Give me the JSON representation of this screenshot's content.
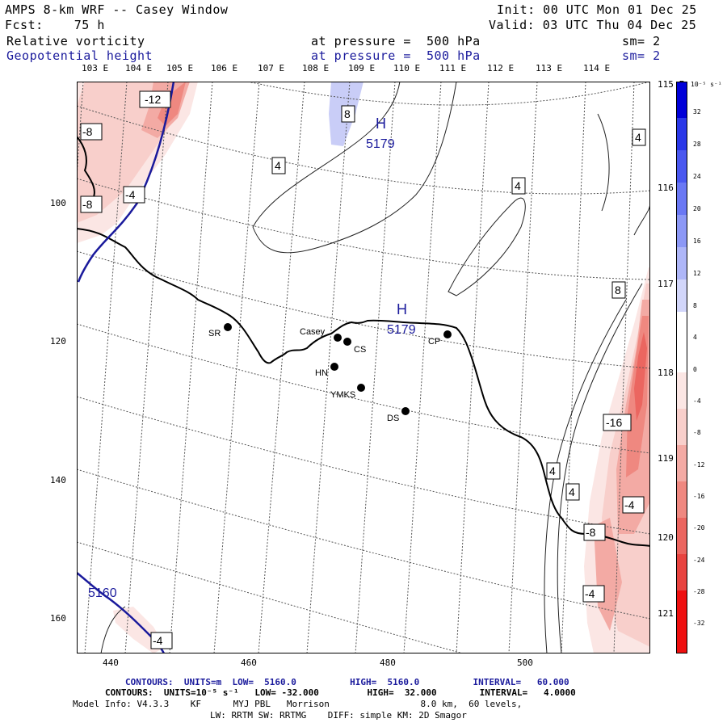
{
  "header": {
    "title": "AMPS 8-km WRF -- Casey Window",
    "forecast": "Fcst:    75 h",
    "init": "Init: 00 UTC Mon 01 Dec 25",
    "valid": "Valid: 03 UTC Thu 04 Dec 25",
    "field1": {
      "name": "Relative vorticity",
      "pressure": "at pressure =  500 hPa",
      "sm": "sm= 2"
    },
    "field2": {
      "name": "Geopotential height",
      "pressure": "at pressure =  500 hPa",
      "sm": "sm= 2"
    }
  },
  "axes": {
    "top_lon_labels": [
      "103 E",
      "104 E",
      "105 E",
      "106 E",
      "107 E",
      "108 E",
      "109 E",
      "110 E",
      "111 E",
      "112 E",
      "113 E",
      "114 E"
    ],
    "right_lon_labels": [
      "115 E",
      "116 E",
      "117 E",
      "118 E",
      "119 E",
      "120 E",
      "121 E"
    ],
    "x_ticks": [
      "440",
      "460",
      "480",
      "500"
    ],
    "y_ticks": [
      "100",
      "120",
      "140",
      "160"
    ]
  },
  "stations": [
    {
      "label": "Casey"
    },
    {
      "label": "CS"
    },
    {
      "label": "CP"
    },
    {
      "label": "SR"
    },
    {
      "label": "HN"
    },
    {
      "label": "YMKS"
    },
    {
      "label": "DS"
    }
  ],
  "contour_labels": {
    "vorticity": [
      "-12",
      "-8",
      "-8",
      "-4",
      "8",
      "4",
      "4",
      "4",
      "8",
      "-16",
      "4",
      "4",
      "-4",
      "-8",
      "-4",
      "-4"
    ],
    "height": [
      "5160",
      "5179",
      "5179"
    ],
    "highs": [
      "H",
      "H"
    ]
  },
  "colorbar": {
    "units": "10⁻⁵ s⁻¹",
    "labels": [
      "32",
      "28",
      "24",
      "20",
      "16",
      "12",
      "8",
      "4",
      "0",
      "-4",
      "-8",
      "-12",
      "-16",
      "-20",
      "-24",
      "-28",
      "-32"
    ],
    "colors": {
      "positive": [
        "#0000d8",
        "#2a38e8",
        "#4a58f0",
        "#6a78f4",
        "#8c98f6",
        "#aeb6f8",
        "#d2d6fa"
      ],
      "neutral": "#ffffff",
      "negative": [
        "#fbe6e4",
        "#f8cfcb",
        "#f3aaa4",
        "#ef8880",
        "#eb6660",
        "#e84440",
        "#ee1010"
      ]
    }
  },
  "footer": {
    "line1": "CONTOURS:  UNITS=m  LOW=  5160.0          HIGH=  5160.0          INTERVAL=   60.000",
    "line2": "CONTOURS:  UNITS=10⁻⁵ s⁻¹   LOW= -32.000         HIGH=  32.000        INTERVAL=   4.0000",
    "line3": "Model Info: V4.3.3    KF      MYJ PBL   Morrison                 8.0 km,  60 levels,",
    "line4": "LW: RRTM SW: RRTMG    DIFF: simple KM: 2D Smagor"
  }
}
